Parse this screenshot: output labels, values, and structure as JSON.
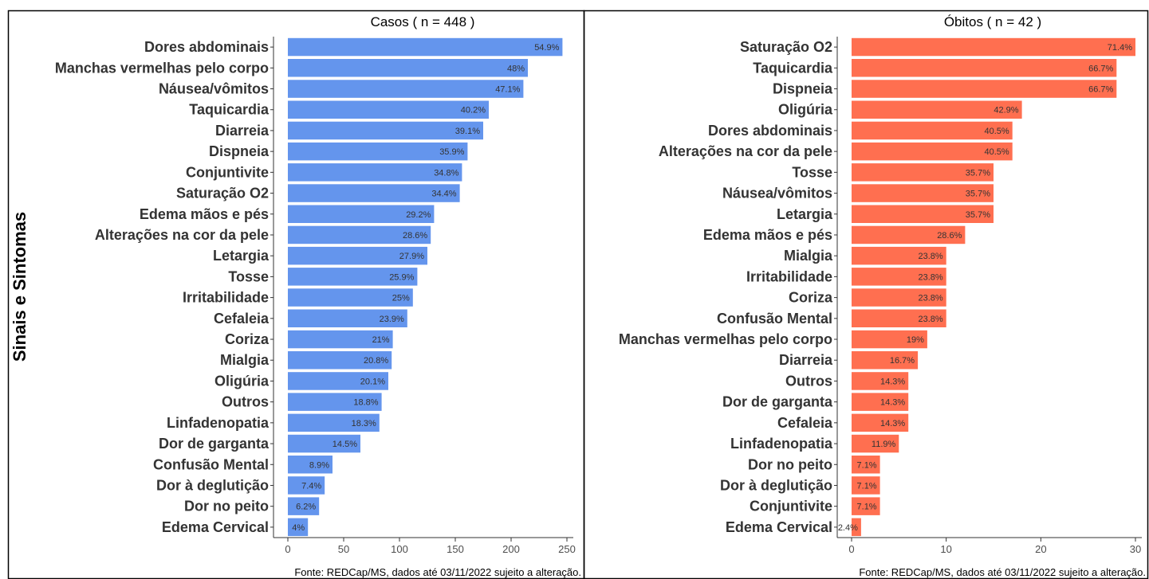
{
  "figure": {
    "ylabel": "Sinais e Sintomas",
    "source": "Fonte: REDCap/MS, dados até 03/11/2022 sujeito a alteração."
  },
  "chart_data": [
    {
      "type": "bar",
      "orientation": "horizontal",
      "title": "Casos ( n =  448 )",
      "color": "#6495ED",
      "xlim": [
        0,
        250
      ],
      "xticks": [
        0,
        50,
        100,
        150,
        200,
        250
      ],
      "grid": false,
      "categories": [
        "Dores abdominais",
        "Manchas vermelhas pelo corpo",
        "Náusea/vômitos",
        "Taquicardia",
        "Diarreia",
        "Dispneia",
        "Conjuntivite",
        "Saturação O2",
        "Edema mãos e pés",
        "Alterações na cor da pele",
        "Letargia",
        "Tosse",
        "Irritabilidade",
        "Cefaleia",
        "Coriza",
        "Mialgia",
        "Oligúria",
        "Outros",
        "Linfadenopatia",
        "Dor de garganta",
        "Confusão Mental",
        "Dor à deglutição",
        "Dor no peito",
        "Edema Cervical"
      ],
      "values": [
        246,
        215,
        211,
        180,
        175,
        161,
        156,
        154,
        131,
        128,
        125,
        116,
        112,
        107,
        94,
        93,
        90,
        84,
        82,
        65,
        40,
        33,
        28,
        18
      ],
      "labels": [
        "54.9%",
        "48%",
        "47.1%",
        "40.2%",
        "39.1%",
        "35.9%",
        "34.8%",
        "34.4%",
        "29.2%",
        "28.6%",
        "27.9%",
        "25.9%",
        "25%",
        "23.9%",
        "21%",
        "20.8%",
        "20.1%",
        "18.8%",
        "18.3%",
        "14.5%",
        "8.9%",
        "7.4%",
        "6.2%",
        "4%"
      ]
    },
    {
      "type": "bar",
      "orientation": "horizontal",
      "title": "Óbitos ( n =  42 )",
      "color": "#FF6F50",
      "xlim": [
        0,
        30
      ],
      "xticks": [
        0,
        10,
        20,
        30
      ],
      "grid": false,
      "categories": [
        "Saturação O2",
        "Taquicardia",
        "Dispneia",
        "Oligúria",
        "Dores abdominais",
        "Alterações na cor da pele",
        "Tosse",
        "Náusea/vômitos",
        "Letargia",
        "Edema mãos e pés",
        "Mialgia",
        "Irritabilidade",
        "Coriza",
        "Confusão Mental",
        "Manchas vermelhas pelo corpo",
        "Diarreia",
        "Outros",
        "Dor de garganta",
        "Cefaleia",
        "Linfadenopatia",
        "Dor no peito",
        "Dor à deglutição",
        "Conjuntivite",
        "Edema Cervical"
      ],
      "values": [
        30,
        28,
        28,
        18,
        17,
        17,
        15,
        15,
        15,
        12,
        10,
        10,
        10,
        10,
        8,
        7,
        6,
        6,
        6,
        5,
        3,
        3,
        3,
        1
      ],
      "labels": [
        "71.4%",
        "66.7%",
        "66.7%",
        "42.9%",
        "40.5%",
        "40.5%",
        "35.7%",
        "35.7%",
        "35.7%",
        "28.6%",
        "23.8%",
        "23.8%",
        "23.8%",
        "23.8%",
        "19%",
        "16.7%",
        "14.3%",
        "14.3%",
        "14.3%",
        "11.9%",
        "7.1%",
        "7.1%",
        "7.1%",
        "2.4%"
      ]
    }
  ]
}
